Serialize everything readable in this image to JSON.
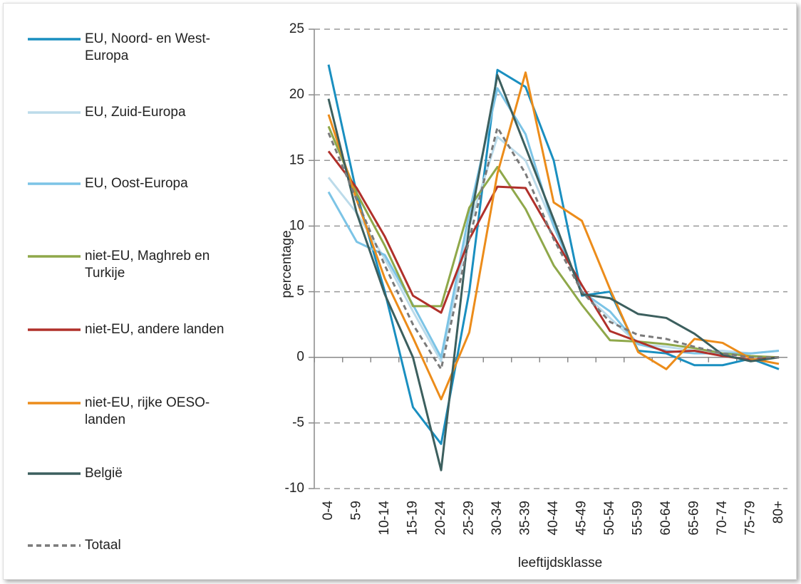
{
  "chart_data": {
    "type": "line",
    "x_label": "leeftijdsklasse",
    "y_label": "percentage",
    "categories": [
      "0-4",
      "5-9",
      "10-14",
      "15-19",
      "20-24",
      "25-29",
      "30-34",
      "35-39",
      "40-44",
      "45-49",
      "50-54",
      "55-59",
      "60-64",
      "65-69",
      "70-74",
      "75-79",
      "80+"
    ],
    "ylim": [
      -10,
      25
    ],
    "yticks": [
      -10,
      -5,
      0,
      5,
      10,
      15,
      20,
      25
    ],
    "grid": true,
    "legend": "left",
    "series": [
      {
        "name": "EU, Noord- en West-Europa",
        "color": "#1a8fc0",
        "values": [
          22.3,
          12.5,
          5,
          -3.8,
          -6.6,
          5,
          21.9,
          20.6,
          15,
          4.7,
          5,
          0.5,
          0.3,
          -0.6,
          -0.6,
          -0.1,
          -0.9
        ]
      },
      {
        "name": "EU, Zuid-Europa",
        "color": "#bcdbea",
        "values": [
          13.7,
          11,
          7.5,
          3.5,
          -0.3,
          10,
          16.8,
          15,
          10,
          5,
          3,
          1,
          0.8,
          0.5,
          0.5,
          0.3,
          0.5
        ]
      },
      {
        "name": "EU, Oost-Europa",
        "color": "#7cc4e6",
        "values": [
          12.6,
          8.8,
          7.8,
          4,
          0,
          11,
          20.5,
          17,
          10,
          5,
          3.5,
          1,
          0.5,
          0.3,
          0.3,
          0.3,
          0.5
        ]
      },
      {
        "name": "niet-EU, Maghreb en Turkije",
        "color": "#8fa84a",
        "values": [
          17.6,
          12.5,
          8.5,
          3.9,
          3.9,
          11.4,
          14.5,
          11.3,
          7,
          4,
          1.3,
          1.2,
          1,
          0.7,
          0.3,
          0.1,
          0
        ]
      },
      {
        "name": "niet-EU, andere landen",
        "color": "#b0302a",
        "values": [
          15.7,
          12.9,
          9.2,
          4.7,
          3.4,
          9,
          13,
          12.9,
          9.2,
          5.5,
          2,
          1.2,
          0.4,
          0.5,
          0.1,
          -0.2,
          0
        ]
      },
      {
        "name": "niet-EU, rijke OESO-landen",
        "color": "#ec8c1a",
        "values": [
          18.5,
          12,
          6,
          1.5,
          -3.2,
          1.9,
          14,
          21.7,
          11.8,
          10.4,
          5.2,
          0.4,
          -0.9,
          1.4,
          1.1,
          -0.1,
          -0.5
        ]
      },
      {
        "name": "België",
        "color": "#3c5f5e",
        "values": [
          19.7,
          11,
          4.8,
          0,
          -8.6,
          10,
          21.5,
          16,
          10.5,
          4.8,
          4.5,
          3.3,
          3,
          1.8,
          0.2,
          -0.3,
          0
        ]
      },
      {
        "name": "Totaal",
        "color": "#7a7a7a",
        "style": "dashed",
        "values": [
          17.1,
          12,
          7,
          2.5,
          -0.9,
          9,
          17.5,
          14,
          9,
          5,
          2.7,
          1.7,
          1.4,
          0.8,
          0.3,
          0,
          0
        ]
      }
    ]
  }
}
